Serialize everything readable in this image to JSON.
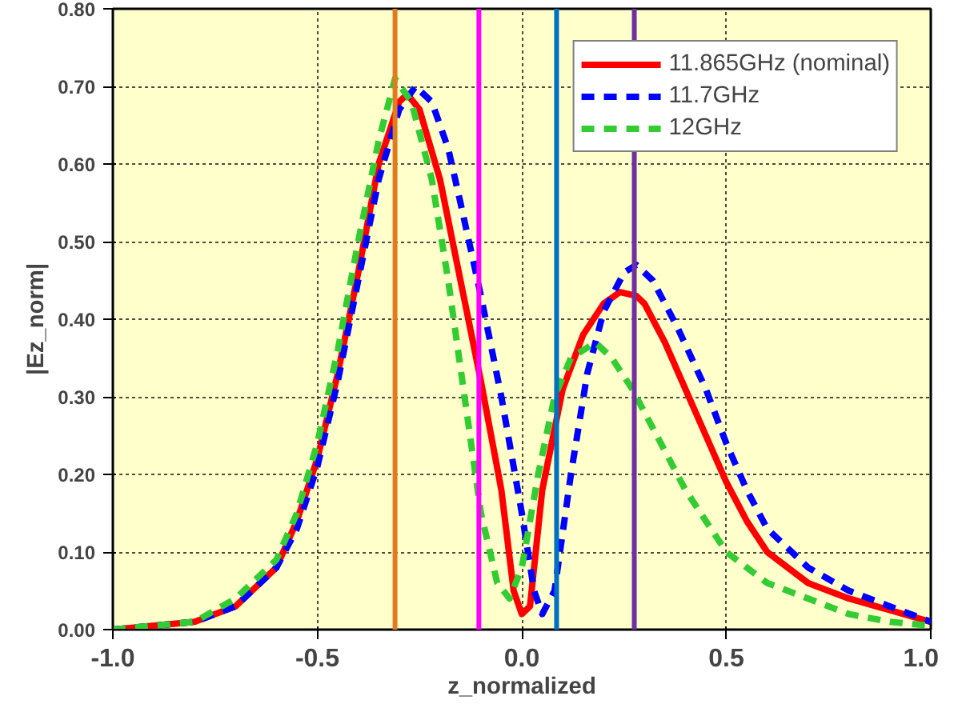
{
  "chart_data": {
    "type": "line",
    "xlabel": "z_normalized",
    "ylabel": "|Ez_norm|",
    "xlim": [
      -1.0,
      1.0
    ],
    "ylim": [
      0,
      0.8
    ],
    "xticks": [
      {
        "value": -1.0,
        "label": "-1.0"
      },
      -0.5,
      {
        "value": 0.0,
        "label": "0.0"
      },
      0.5,
      {
        "value": 1.0,
        "label": "1.0"
      }
    ],
    "yticks": [
      {
        "value": 0,
        "label": "0.00"
      },
      {
        "value": 0.1,
        "label": "0.10"
      },
      {
        "value": 0.2,
        "label": "0.20"
      },
      {
        "value": 0.3,
        "label": "0.30"
      },
      {
        "value": 0.4,
        "label": "0.40"
      },
      {
        "value": 0.5,
        "label": "0.50"
      },
      {
        "value": 0.6,
        "label": "0.60"
      },
      {
        "value": 0.7,
        "label": "0.70"
      },
      {
        "value": 0.8,
        "label": "0.80"
      }
    ],
    "grid": true,
    "legend": "top right",
    "marker": "none",
    "series": [
      {
        "name": "11.865GHz (nominal)",
        "color": "#ff0000",
        "line_style": "solid",
        "x": [
          -1,
          -0.8,
          -0.7,
          -0.6,
          -0.55,
          -0.5,
          -0.45,
          -0.4,
          -0.35,
          -0.3,
          -0.28,
          -0.25,
          -0.2,
          -0.15,
          -0.1,
          -0.05,
          -0.02,
          0,
          0.02,
          0.05,
          0.1,
          0.15,
          0.2,
          0.24,
          0.28,
          0.3,
          0.35,
          0.4,
          0.45,
          0.5,
          0.55,
          0.6,
          0.7,
          0.8,
          0.9,
          1.0
        ],
        "values": [
          0,
          0.01,
          0.03,
          0.08,
          0.14,
          0.22,
          0.33,
          0.46,
          0.6,
          0.68,
          0.69,
          0.67,
          0.58,
          0.45,
          0.32,
          0.18,
          0.05,
          0.02,
          0.03,
          0.18,
          0.31,
          0.38,
          0.42,
          0.435,
          0.43,
          0.42,
          0.37,
          0.31,
          0.25,
          0.19,
          0.14,
          0.1,
          0.06,
          0.04,
          0.025,
          0.01
        ]
      },
      {
        "name": "11.7GHz",
        "color": "#0000ff",
        "line_style": "dashed",
        "x": [
          -1,
          -0.8,
          -0.7,
          -0.6,
          -0.55,
          -0.5,
          -0.45,
          -0.4,
          -0.35,
          -0.3,
          -0.26,
          -0.22,
          -0.18,
          -0.15,
          -0.1,
          -0.05,
          0,
          0.03,
          0.05,
          0.08,
          0.12,
          0.16,
          0.2,
          0.25,
          0.28,
          0.32,
          0.38,
          0.45,
          0.5,
          0.55,
          0.6,
          0.7,
          0.8,
          0.9,
          1.0
        ],
        "values": [
          0,
          0.01,
          0.03,
          0.08,
          0.13,
          0.21,
          0.32,
          0.45,
          0.58,
          0.67,
          0.7,
          0.68,
          0.62,
          0.55,
          0.43,
          0.3,
          0.15,
          0.05,
          0.02,
          0.05,
          0.2,
          0.33,
          0.41,
          0.46,
          0.47,
          0.45,
          0.39,
          0.31,
          0.24,
          0.18,
          0.13,
          0.08,
          0.05,
          0.03,
          0.01
        ]
      },
      {
        "name": "12GHz",
        "color": "#33cc33",
        "line_style": "dashed",
        "x": [
          -1,
          -0.8,
          -0.7,
          -0.6,
          -0.55,
          -0.5,
          -0.45,
          -0.4,
          -0.35,
          -0.31,
          -0.27,
          -0.22,
          -0.18,
          -0.14,
          -0.1,
          -0.06,
          -0.03,
          0,
          0.04,
          0.08,
          0.12,
          0.18,
          0.22,
          0.27,
          0.3,
          0.35,
          0.4,
          0.45,
          0.5,
          0.6,
          0.7,
          0.8,
          0.9,
          1.0
        ],
        "values": [
          0,
          0.01,
          0.04,
          0.09,
          0.15,
          0.24,
          0.36,
          0.5,
          0.63,
          0.71,
          0.68,
          0.58,
          0.45,
          0.3,
          0.15,
          0.06,
          0.04,
          0.08,
          0.2,
          0.3,
          0.35,
          0.37,
          0.35,
          0.31,
          0.28,
          0.23,
          0.18,
          0.14,
          0.1,
          0.06,
          0.04,
          0.02,
          0.01,
          0.005
        ]
      }
    ],
    "ref_lines": [
      {
        "axis": "x",
        "value": -0.31,
        "color": "#e07b20"
      },
      {
        "axis": "x",
        "value": -0.105,
        "color": "#ff00ff"
      },
      {
        "axis": "x",
        "value": 0.085,
        "color": "#0070c0"
      },
      {
        "axis": "x",
        "value": 0.275,
        "color": "#7030a0"
      }
    ]
  }
}
